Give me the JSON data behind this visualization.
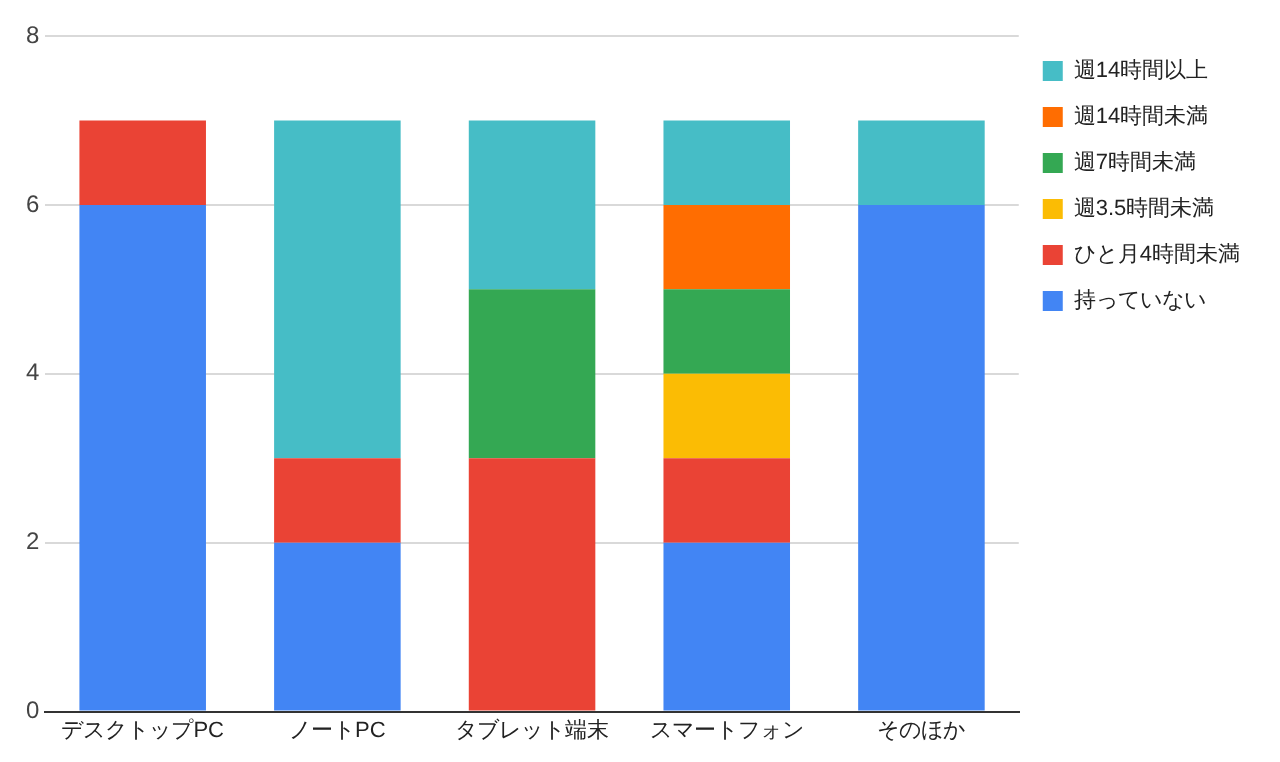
{
  "chart_data": {
    "type": "bar",
    "stacked": true,
    "categories": [
      "デスクトップPC",
      "ノートPC",
      "タブレット端末",
      "スマートフォン",
      "そのほか"
    ],
    "series": [
      {
        "name": "持っていない",
        "color": "#4285f4",
        "values": [
          6,
          2,
          null,
          2,
          6
        ]
      },
      {
        "name": "ひと月4時間未満",
        "color": "#ea4335",
        "values": [
          1,
          1,
          3,
          1,
          null
        ]
      },
      {
        "name": "週3.5時間未満",
        "color": "#fbbc04",
        "values": [
          null,
          null,
          null,
          1,
          null
        ]
      },
      {
        "name": "週7時間未満",
        "color": "#34a853",
        "values": [
          null,
          null,
          2,
          1,
          null
        ]
      },
      {
        "name": "週14時間未満",
        "color": "#ff6d01",
        "values": [
          null,
          null,
          null,
          1,
          null
        ]
      },
      {
        "name": "週14時間以上",
        "color": "#46bdc6",
        "values": [
          null,
          4,
          2,
          1,
          1
        ]
      }
    ],
    "ylim": [
      0,
      8
    ],
    "yticks": [
      0,
      2,
      4,
      6,
      8
    ],
    "grid": "y",
    "legend": "right"
  }
}
